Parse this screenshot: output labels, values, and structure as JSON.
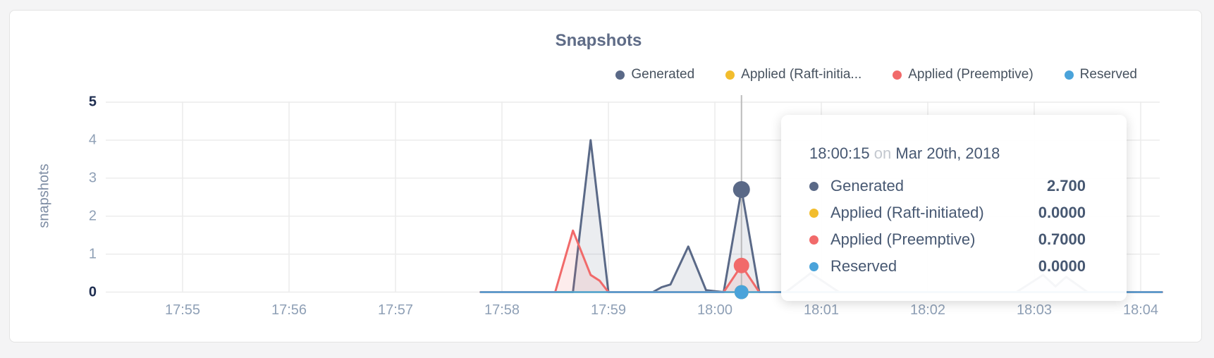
{
  "card": {
    "title": "Snapshots"
  },
  "legend": {
    "items": [
      {
        "label": "Generated",
        "color": "#5a6987"
      },
      {
        "label": "Applied (Raft-initia...",
        "color": "#f2bd2d"
      },
      {
        "label": "Applied (Preemptive)",
        "color": "#f16a6a"
      },
      {
        "label": "Reserved",
        "color": "#4aa3da"
      }
    ]
  },
  "chart_data": {
    "type": "area",
    "title": "Snapshots",
    "ylabel": "snapshots",
    "xlabel": "",
    "x_ticks": [
      "17:55",
      "17:56",
      "17:57",
      "17:58",
      "17:59",
      "18:00",
      "18:01",
      "18:02",
      "18:03",
      "18:04"
    ],
    "y_ticks": [
      0,
      1,
      2,
      3,
      4,
      5
    ],
    "ylim": [
      0,
      5
    ],
    "grid": true,
    "legend_position": "top-right",
    "note_x_units": "points t = minutes after 17:55, values = snapshots",
    "series": [
      {
        "name": "Generated",
        "color": "#5a6987",
        "fill": "rgba(90,105,135,0.12)",
        "points": [
          [
            2.8,
            0
          ],
          [
            3.5,
            0
          ],
          [
            3.667,
            0
          ],
          [
            3.833,
            4.0
          ],
          [
            4.0,
            0
          ],
          [
            4.417,
            0
          ],
          [
            4.5,
            0.13
          ],
          [
            4.583,
            0.2
          ],
          [
            4.75,
            1.2
          ],
          [
            4.917,
            0.05
          ],
          [
            5.083,
            0
          ],
          [
            5.25,
            2.7
          ],
          [
            5.417,
            0
          ],
          [
            5.667,
            0
          ],
          [
            5.9,
            0.5
          ],
          [
            6.167,
            0
          ],
          [
            7.833,
            0
          ],
          [
            8.083,
            0.45
          ],
          [
            8.2,
            0.15
          ],
          [
            8.3,
            0.4
          ],
          [
            8.5,
            0
          ],
          [
            9.2,
            0
          ]
        ]
      },
      {
        "name": "Applied (Raft-initiated)",
        "color": "#f2bd2d",
        "fill": "none",
        "points": [
          [
            2.8,
            0
          ],
          [
            9.2,
            0
          ]
        ]
      },
      {
        "name": "Applied (Preemptive)",
        "color": "#f16a6a",
        "fill": "rgba(241,106,106,0.13)",
        "points": [
          [
            2.8,
            0
          ],
          [
            3.5,
            0
          ],
          [
            3.667,
            1.62
          ],
          [
            3.833,
            0.45
          ],
          [
            3.917,
            0.3
          ],
          [
            4.0,
            0
          ],
          [
            5.083,
            0
          ],
          [
            5.25,
            0.7
          ],
          [
            5.417,
            0
          ],
          [
            9.2,
            0
          ]
        ]
      },
      {
        "name": "Reserved",
        "color": "#4aa3da",
        "fill": "none",
        "points": [
          [
            2.8,
            0
          ],
          [
            9.2,
            0
          ]
        ]
      }
    ],
    "hover": {
      "t": 5.25,
      "time": "18:00:15",
      "dots": [
        {
          "series": 0,
          "v": 2.7,
          "r": 12
        },
        {
          "series": 1,
          "v": 0,
          "r": 10
        },
        {
          "series": 2,
          "v": 0.7,
          "r": 11
        },
        {
          "series": 3,
          "v": 0,
          "r": 10
        }
      ]
    }
  },
  "tooltip": {
    "time": "18:00:15",
    "on": "on",
    "date": "Mar 20th, 2018",
    "rows": [
      {
        "label": "Generated",
        "value": "2.700",
        "color": "#5a6987"
      },
      {
        "label": "Applied (Raft-initiated)",
        "value": "0.0000",
        "color": "#f2bd2d"
      },
      {
        "label": "Applied (Preemptive)",
        "value": "0.7000",
        "color": "#f16a6a"
      },
      {
        "label": "Reserved",
        "value": "0.0000",
        "color": "#4aa3da"
      }
    ]
  }
}
